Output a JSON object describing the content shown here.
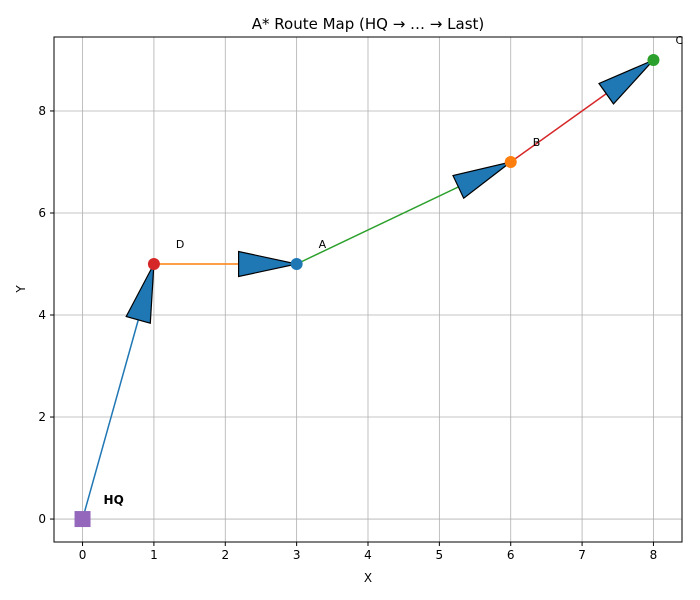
{
  "chart_data": {
    "type": "scatter",
    "title": "A* Route Map (HQ → … → Last)",
    "xlabel": "X",
    "ylabel": "Y",
    "xlim": [
      -0.4,
      8.4
    ],
    "ylim": [
      -0.45,
      9.45
    ],
    "xticks": [
      0,
      1,
      2,
      3,
      4,
      5,
      6,
      7,
      8
    ],
    "yticks": [
      0,
      2,
      4,
      6,
      8
    ],
    "grid": true,
    "hq": {
      "label": "HQ",
      "x": 0,
      "y": 0,
      "color": "#9467bd",
      "marker": "square"
    },
    "points": [
      {
        "label": "A",
        "x": 3,
        "y": 5,
        "color": "#1f77b4"
      },
      {
        "label": "B",
        "x": 6,
        "y": 7,
        "color": "#ff7f0e"
      },
      {
        "label": "C",
        "x": 8,
        "y": 9,
        "color": "#2ca02c"
      },
      {
        "label": "D",
        "x": 1,
        "y": 5,
        "color": "#d62728"
      }
    ],
    "route": [
      {
        "from": [
          0,
          0
        ],
        "to": [
          1,
          5
        ],
        "color": "#1f77b4"
      },
      {
        "from": [
          1,
          5
        ],
        "to": [
          3,
          5
        ],
        "color": "#ff7f0e"
      },
      {
        "from": [
          3,
          5
        ],
        "to": [
          6,
          7
        ],
        "color": "#2ca02c"
      },
      {
        "from": [
          6,
          7
        ],
        "to": [
          8,
          9
        ],
        "color": "#d62728"
      }
    ],
    "arrowhead_color": "#1f77b4"
  }
}
